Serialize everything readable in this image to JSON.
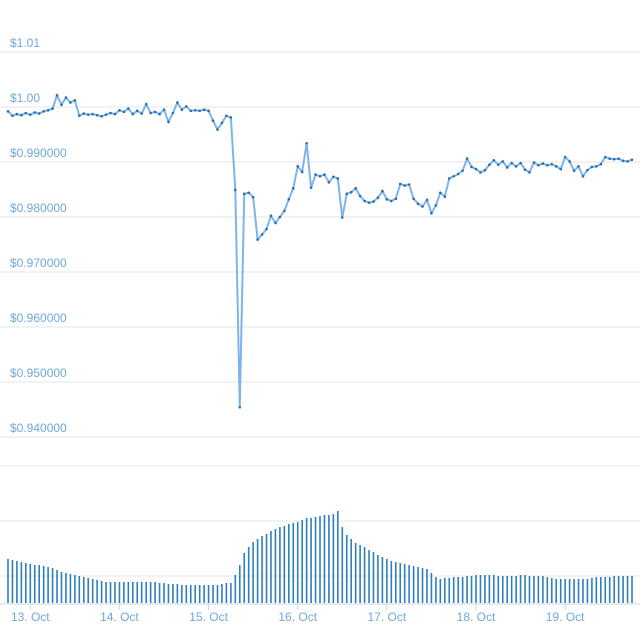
{
  "chart_data": {
    "type": "line",
    "title": "",
    "xlabel": "",
    "ylabel": "",
    "ylim": [
      0.9343,
      1.0111
    ],
    "y_ticks": [
      {
        "value": 1.01,
        "label": "$1.01"
      },
      {
        "value": 1.0,
        "label": "$1.00"
      },
      {
        "value": 0.99,
        "label": "$0.990000"
      },
      {
        "value": 0.98,
        "label": "$0.980000"
      },
      {
        "value": 0.97,
        "label": "$0.970000"
      },
      {
        "value": 0.96,
        "label": "$0.960000"
      },
      {
        "value": 0.95,
        "label": "$0.950000"
      },
      {
        "value": 0.94,
        "label": "$0.940000"
      }
    ],
    "x_ticks": [
      {
        "value": 13,
        "label": "13. Oct"
      },
      {
        "value": 14,
        "label": "14. Oct"
      },
      {
        "value": 15,
        "label": "15. Oct"
      },
      {
        "value": 16,
        "label": "16. Oct"
      },
      {
        "value": 17,
        "label": "17. Oct"
      },
      {
        "value": 18,
        "label": "18. Oct"
      },
      {
        "value": 19,
        "label": "19. Oct"
      }
    ],
    "xlim": [
      12.75,
      19.75
    ],
    "grid": true,
    "price_series": {
      "x": [
        12.75,
        12.8,
        12.85,
        12.9,
        12.95,
        13.0,
        13.05,
        13.1,
        13.15,
        13.2,
        13.25,
        13.3,
        13.35,
        13.4,
        13.45,
        13.5,
        13.55,
        13.6,
        13.65,
        13.7,
        13.75,
        13.8,
        13.85,
        13.9,
        13.95,
        14.0,
        14.05,
        14.1,
        14.15,
        14.2,
        14.25,
        14.3,
        14.35,
        14.4,
        14.45,
        14.5,
        14.55,
        14.6,
        14.65,
        14.7,
        14.75,
        14.8,
        14.85,
        14.9,
        14.95,
        15.0,
        15.05,
        15.1,
        15.15,
        15.2,
        15.25,
        15.3,
        15.35,
        15.4,
        15.45,
        15.5,
        15.55,
        15.6,
        15.65,
        15.7,
        15.75,
        15.8,
        15.85,
        15.9,
        15.95,
        16.0,
        16.05,
        16.1,
        16.15,
        16.2,
        16.25,
        16.3,
        16.35,
        16.4,
        16.45,
        16.5,
        16.55,
        16.6,
        16.65,
        16.7,
        16.75,
        16.8,
        16.85,
        16.9,
        16.95,
        17.0,
        17.05,
        17.1,
        17.15,
        17.2,
        17.25,
        17.3,
        17.35,
        17.4,
        17.45,
        17.5,
        17.55,
        17.6,
        17.65,
        17.7,
        17.75,
        17.8,
        17.85,
        17.9,
        17.95,
        18.0,
        18.05,
        18.1,
        18.15,
        18.2,
        18.25,
        18.3,
        18.35,
        18.4,
        18.45,
        18.5,
        18.55,
        18.6,
        18.65,
        18.7,
        18.75,
        18.8,
        18.85,
        18.9,
        18.95,
        19.0,
        19.05,
        19.1,
        19.15,
        19.2,
        19.25,
        19.3,
        19.35,
        19.4,
        19.45,
        19.5,
        19.55,
        19.6,
        19.65,
        19.7,
        19.75
      ],
      "y": [
        0.9983,
        0.9975,
        0.9978,
        0.9976,
        0.998,
        0.9977,
        0.9981,
        0.9979,
        0.9983,
        0.9985,
        0.9988,
        1.0012,
        0.9995,
        1.0008,
        0.9999,
        1.0003,
        0.9975,
        0.9979,
        0.9977,
        0.9978,
        0.9976,
        0.9974,
        0.9977,
        0.998,
        0.9978,
        0.9985,
        0.9982,
        0.9988,
        0.9978,
        0.9984,
        0.9979,
        0.9996,
        0.998,
        0.9982,
        0.9978,
        0.9986,
        0.9964,
        0.998,
        0.9999,
        0.9986,
        0.9992,
        0.9984,
        0.9985,
        0.9984,
        0.9986,
        0.9984,
        0.9966,
        0.995,
        0.9962,
        0.9975,
        0.9972,
        0.984,
        0.9445,
        0.9833,
        0.9835,
        0.9827,
        0.975,
        0.9759,
        0.9769,
        0.9793,
        0.978,
        0.9791,
        0.9802,
        0.9823,
        0.9843,
        0.9883,
        0.9873,
        0.9925,
        0.9844,
        0.9868,
        0.9865,
        0.9868,
        0.9854,
        0.9864,
        0.9861,
        0.979,
        0.9833,
        0.9836,
        0.9843,
        0.9829,
        0.982,
        0.9817,
        0.9819,
        0.9826,
        0.9838,
        0.9823,
        0.982,
        0.9824,
        0.9851,
        0.9848,
        0.985,
        0.9824,
        0.9815,
        0.981,
        0.9822,
        0.9798,
        0.9812,
        0.9835,
        0.9828,
        0.9861,
        0.9865,
        0.9869,
        0.9875,
        0.9897,
        0.9882,
        0.9878,
        0.9872,
        0.9876,
        0.9886,
        0.9894,
        0.9886,
        0.9892,
        0.9881,
        0.9889,
        0.9883,
        0.9889,
        0.9877,
        0.9872,
        0.989,
        0.9885,
        0.9888,
        0.9885,
        0.9887,
        0.9883,
        0.9878,
        0.99,
        0.9892,
        0.9875,
        0.9883,
        0.9865,
        0.9876,
        0.9882,
        0.9883,
        0.9887,
        0.99,
        0.9897,
        0.9896,
        0.9897,
        0.9893,
        0.9892,
        0.9895
      ]
    },
    "volume_series": {
      "x": [
        12.75,
        12.8,
        12.85,
        12.9,
        12.95,
        13.0,
        13.05,
        13.1,
        13.15,
        13.2,
        13.25,
        13.3,
        13.35,
        13.4,
        13.45,
        13.5,
        13.55,
        13.6,
        13.65,
        13.7,
        13.75,
        13.8,
        13.85,
        13.9,
        13.95,
        14.0,
        14.05,
        14.1,
        14.15,
        14.2,
        14.25,
        14.3,
        14.35,
        14.4,
        14.45,
        14.5,
        14.55,
        14.6,
        14.65,
        14.7,
        14.75,
        14.8,
        14.85,
        14.9,
        14.95,
        15.0,
        15.05,
        15.1,
        15.15,
        15.2,
        15.25,
        15.3,
        15.35,
        15.4,
        15.45,
        15.5,
        15.55,
        15.6,
        15.65,
        15.7,
        15.75,
        15.8,
        15.85,
        15.9,
        15.95,
        16.0,
        16.05,
        16.1,
        16.15,
        16.2,
        16.25,
        16.3,
        16.35,
        16.4,
        16.45,
        16.5,
        16.55,
        16.6,
        16.65,
        16.7,
        16.75,
        16.8,
        16.85,
        16.9,
        16.95,
        17.0,
        17.05,
        17.1,
        17.15,
        17.2,
        17.25,
        17.3,
        17.35,
        17.4,
        17.45,
        17.5,
        17.55,
        17.6,
        17.65,
        17.7,
        17.75,
        17.8,
        17.85,
        17.9,
        17.95,
        18.0,
        18.05,
        18.1,
        18.15,
        18.2,
        18.25,
        18.3,
        18.35,
        18.4,
        18.45,
        18.5,
        18.55,
        18.6,
        18.65,
        18.7,
        18.75,
        18.8,
        18.85,
        18.9,
        18.95,
        19.0,
        19.05,
        19.1,
        19.15,
        19.2,
        19.25,
        19.3,
        19.35,
        19.4,
        19.45,
        19.5,
        19.55,
        19.6,
        19.65,
        19.7,
        19.75
      ],
      "values": [
        44,
        43,
        42,
        41,
        40,
        39,
        38,
        38,
        37,
        36,
        35,
        33,
        31,
        30,
        29,
        28,
        27,
        26,
        25,
        24,
        23,
        22,
        21,
        21,
        21,
        21,
        21,
        21,
        21,
        21,
        21,
        21,
        21,
        21,
        20,
        20,
        19,
        19,
        19,
        18,
        18,
        18,
        18,
        18,
        18,
        18,
        18,
        18,
        19,
        20,
        20,
        28,
        38,
        50,
        56,
        61,
        64,
        67,
        69,
        72,
        74,
        76,
        77,
        79,
        80,
        81,
        83,
        85,
        85,
        86,
        87,
        88,
        88,
        89,
        92,
        76,
        68,
        64,
        60,
        58,
        56,
        53,
        51,
        48,
        46,
        44,
        42,
        41,
        40,
        39,
        38,
        37,
        36,
        35,
        34,
        30,
        26,
        24,
        25,
        25,
        26,
        26,
        26,
        27,
        27,
        28,
        28,
        28,
        28,
        28,
        27,
        27,
        27,
        27,
        27,
        28,
        28,
        27,
        27,
        27,
        27,
        26,
        25,
        24,
        24,
        24,
        24,
        24,
        24,
        24,
        24,
        25,
        26,
        26,
        26,
        26,
        27,
        27,
        27,
        27,
        27
      ]
    }
  }
}
